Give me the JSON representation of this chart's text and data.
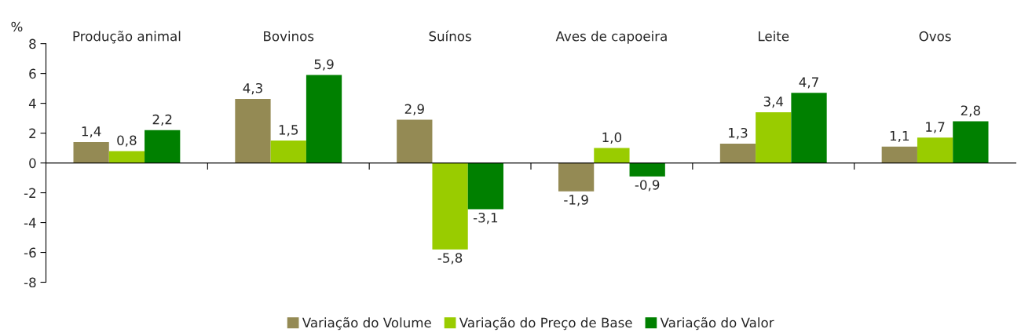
{
  "chart_data": {
    "type": "bar",
    "ylabel": "%",
    "categories": [
      "Produção animal",
      "Bovinos",
      "Suínos",
      "Aves de capoeira",
      "Leite",
      "Ovos"
    ],
    "series": [
      {
        "name": "Variação do Volume",
        "color": "#948a54",
        "values": [
          1.4,
          4.3,
          2.9,
          -1.9,
          1.3,
          1.1
        ],
        "value_labels": [
          "1,4",
          "4,3",
          "2,9",
          "-1,9",
          "1,3",
          "1,1"
        ]
      },
      {
        "name": "Variação do Preço de Base",
        "color": "#99cc00",
        "values": [
          0.8,
          1.5,
          -5.8,
          1.0,
          3.4,
          1.7
        ],
        "value_labels": [
          "0,8",
          "1,5",
          "-5,8",
          "1,0",
          "3,4",
          "1,7"
        ]
      },
      {
        "name": "Variação do Valor",
        "color": "#008000",
        "values": [
          2.2,
          5.9,
          -3.1,
          -0.9,
          4.7,
          2.8
        ],
        "value_labels": [
          "2,2",
          "5,9",
          "-3,1",
          "-0,9",
          "4,7",
          "2,8"
        ]
      }
    ],
    "ylim": [
      -8,
      8
    ],
    "yticks": [
      -8,
      -6,
      -4,
      -2,
      0,
      2,
      4,
      6,
      8
    ],
    "legend": "bottom"
  }
}
